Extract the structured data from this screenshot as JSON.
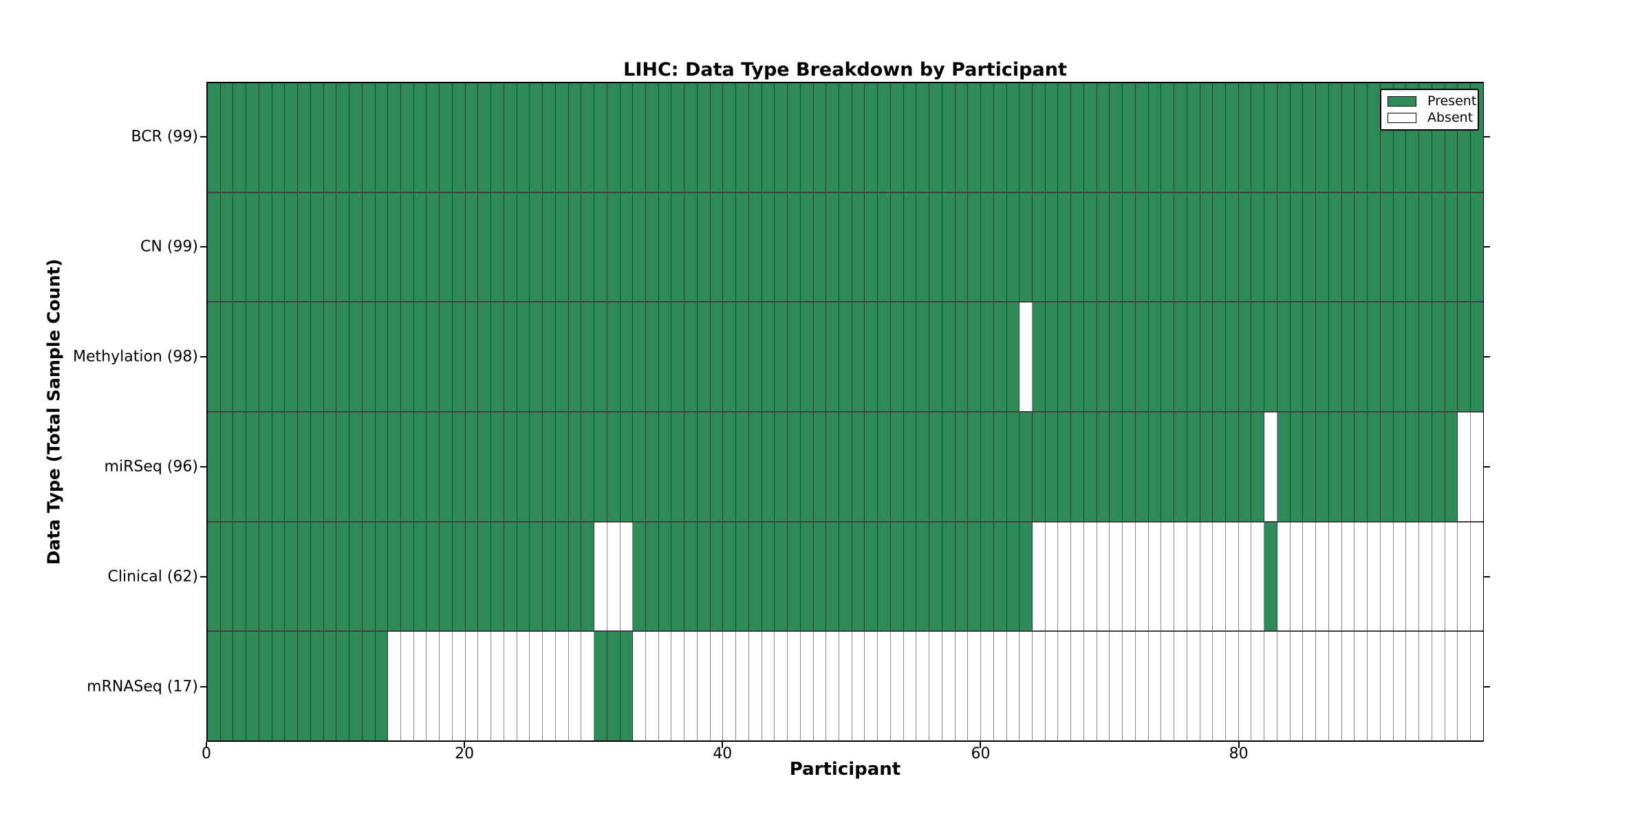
{
  "figure": {
    "title": "LIHC: Data Type Breakdown by Participant",
    "xlabel": "Participant",
    "ylabel": "Data Type (Total Sample Count)"
  },
  "legend": {
    "present_label": "Present",
    "absent_label": "Absent"
  },
  "colors": {
    "present": "#2e8b57",
    "absent": "#ffffff",
    "border": "#000000"
  },
  "chart_data": {
    "type": "heatmap",
    "title": "LIHC: Data Type Breakdown by Participant",
    "xlabel": "Participant",
    "ylabel": "Data Type (Total Sample Count)",
    "legend": [
      "Present",
      "Absent"
    ],
    "legend_position": "upper right",
    "n_participants": 99,
    "x_ticks": [
      0,
      20,
      40,
      60,
      80
    ],
    "x_range": [
      0,
      99
    ],
    "cell_states": [
      "present",
      "absent"
    ],
    "rows": [
      {
        "data_type": "BCR",
        "label": "BCR (99)",
        "total_samples": 99,
        "present_ranges": [
          [
            0,
            98
          ]
        ]
      },
      {
        "data_type": "CN",
        "label": "CN (99)",
        "total_samples": 99,
        "present_ranges": [
          [
            0,
            98
          ]
        ]
      },
      {
        "data_type": "Methylation",
        "label": "Methylation (98)",
        "total_samples": 98,
        "present_ranges": [
          [
            0,
            62
          ],
          [
            64,
            98
          ]
        ]
      },
      {
        "data_type": "miRSeq",
        "label": "miRSeq (96)",
        "total_samples": 96,
        "present_ranges": [
          [
            0,
            81
          ],
          [
            83,
            96
          ]
        ]
      },
      {
        "data_type": "Clinical",
        "label": "Clinical (62)",
        "total_samples": 62,
        "present_ranges": [
          [
            0,
            29
          ],
          [
            33,
            63
          ],
          [
            82,
            82
          ]
        ]
      },
      {
        "data_type": "mRNASeq",
        "label": "mRNASeq (17)",
        "total_samples": 17,
        "present_ranges": [
          [
            0,
            13
          ],
          [
            30,
            32
          ]
        ]
      }
    ]
  }
}
